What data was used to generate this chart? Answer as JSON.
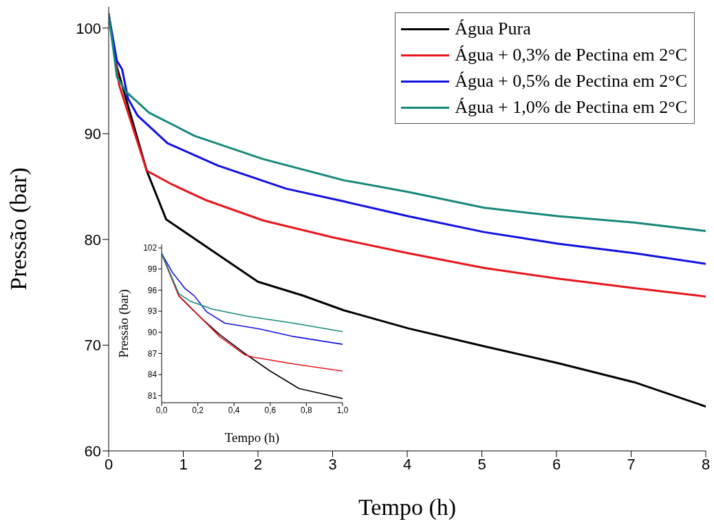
{
  "chart_data": [
    {
      "type": "line",
      "xlabel": "Tempo (h)",
      "ylabel": "Pressão (bar)",
      "xlim": [
        0,
        8
      ],
      "ylim": [
        60,
        102
      ],
      "xticks": [
        0,
        1,
        2,
        3,
        4,
        5,
        6,
        7,
        8
      ],
      "yticks": [
        60,
        70,
        80,
        90,
        100
      ],
      "legend": "top right",
      "grid": false,
      "series": [
        {
          "name": "Água Pura",
          "color": "#000000",
          "x": [
            0,
            0.11,
            0.51,
            0.77,
            1.31,
            2,
            2.6,
            3.15,
            4.01,
            5.03,
            6.02,
            7.04,
            8
          ],
          "values": [
            101.3,
            96.3,
            86.5,
            81.9,
            79.3,
            76.0,
            74.7,
            73.3,
            71.6,
            69.9,
            68.3,
            66.5,
            64.2
          ]
        },
        {
          "name": "Água + 0,3% de Pectina em 2°C",
          "color": "#e8151d",
          "x": [
            0,
            0.14,
            0.51,
            0.85,
            1.31,
            2.07,
            3.0,
            4.01,
            5.03,
            6.02,
            7.04,
            8
          ],
          "values": [
            101.3,
            94.6,
            86.5,
            85.2,
            83.7,
            81.8,
            80.2,
            78.7,
            77.3,
            76.3,
            75.4,
            74.6
          ]
        },
        {
          "name": "Água + 0,5% de Pectina em 2°C",
          "color": "#1010e0",
          "x": [
            0,
            0.11,
            0.18,
            0.26,
            0.39,
            0.79,
            1.46,
            2.38,
            3.15,
            4.01,
            5.03,
            6.02,
            7.04,
            8
          ],
          "values": [
            101.3,
            96.9,
            96.1,
            93.3,
            91.7,
            89.1,
            87.0,
            84.8,
            83.6,
            82.2,
            80.7,
            79.6,
            78.7,
            77.7
          ]
        },
        {
          "name": "Água + 1,0% de Pectina em 2°C",
          "color": "#16887a",
          "x": [
            0,
            0.11,
            0.23,
            0.54,
            1.15,
            2.07,
            3.15,
            4.01,
            5.03,
            6.02,
            7.04,
            8
          ],
          "values": [
            101.3,
            95.4,
            94.0,
            92.0,
            89.8,
            87.6,
            85.6,
            84.5,
            83.0,
            82.2,
            81.6,
            80.8
          ]
        }
      ]
    },
    {
      "type": "line",
      "xlabel": "Tempo (h)",
      "ylabel": "Pressão (bar)",
      "xlim": [
        0,
        1
      ],
      "ylim": [
        80,
        102.5
      ],
      "xticks": [
        {
          "value": 0,
          "label": "0,0"
        },
        {
          "value": 0.2,
          "label": "0,2"
        },
        {
          "value": 0.4,
          "label": "0,4"
        },
        {
          "value": 0.6,
          "label": "0,6"
        },
        {
          "value": 0.8,
          "label": "0,8"
        },
        {
          "value": 1,
          "label": "1,0"
        }
      ],
      "yticks": [
        81,
        84,
        87,
        90,
        93,
        96,
        99,
        102
      ],
      "grid": false,
      "series": [
        {
          "color": "#000000",
          "x": [
            0,
            0.095,
            0.22,
            0.32,
            0.47,
            0.6,
            0.76,
            0.85,
            1.0
          ],
          "values": [
            101.2,
            95.2,
            92.0,
            89.7,
            86.8,
            84.5,
            82.0,
            81.5,
            80.6
          ]
        },
        {
          "color": "#e8151d",
          "x": [
            0,
            0.095,
            0.12,
            0.22,
            0.32,
            0.46,
            0.5,
            0.73,
            1.0
          ],
          "values": [
            101.2,
            95.2,
            94.5,
            92.0,
            89.4,
            86.8,
            86.5,
            85.5,
            84.5
          ]
        },
        {
          "color": "#1010e0",
          "x": [
            0,
            0.06,
            0.13,
            0.18,
            0.25,
            0.35,
            0.54,
            0.73,
            1.0
          ],
          "values": [
            101.2,
            98.5,
            96.2,
            95.2,
            92.9,
            91.3,
            90.5,
            89.4,
            88.3
          ]
        },
        {
          "color": "#16887a",
          "x": [
            0,
            0.095,
            0.16,
            0.28,
            0.47,
            0.73,
            1.0
          ],
          "values": [
            101.2,
            95.5,
            94.4,
            93.3,
            92.3,
            91.3,
            90.1
          ]
        }
      ]
    }
  ]
}
